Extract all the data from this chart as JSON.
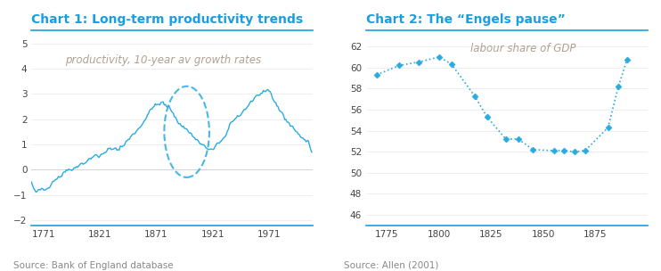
{
  "chart1_title": "Chart 1: Long-term productivity trends",
  "chart1_annotation": "productivity, 10-year av growth rates",
  "chart1_source": "Source: Bank of England database",
  "chart1_color": "#29ABE2",
  "chart1_xlim": [
    1760,
    2010
  ],
  "chart1_ylim": [
    -2.2,
    5.5
  ],
  "chart1_yticks": [
    -2,
    -1,
    0,
    1,
    2,
    3,
    4,
    5
  ],
  "chart1_xticks": [
    1771,
    1821,
    1871,
    1921,
    1971
  ],
  "chart2_title": "Chart 2: The “Engels pause”",
  "chart2_annotation": "labour share of GDP",
  "chart2_source": "Source: Allen (2001)",
  "chart2_color": "#29ABE2",
  "chart2_x": [
    1770,
    1781,
    1790,
    1800,
    1806,
    1817,
    1823,
    1832,
    1838,
    1845,
    1855,
    1860,
    1865,
    1870,
    1881,
    1886,
    1890
  ],
  "chart2_y": [
    59.3,
    60.2,
    60.5,
    61.0,
    60.3,
    57.3,
    55.3,
    53.2,
    53.2,
    52.2,
    52.1,
    52.1,
    52.0,
    52.1,
    54.3,
    58.2,
    60.7
  ],
  "chart2_xlim": [
    1765,
    1900
  ],
  "chart2_ylim": [
    45.0,
    63.5
  ],
  "chart2_yticks": [
    46,
    48,
    50,
    52,
    54,
    56,
    58,
    60,
    62
  ],
  "chart2_xticks": [
    1775,
    1800,
    1825,
    1850,
    1875
  ],
  "title_color": "#1A9EE0",
  "title_fontsize": 10,
  "annotation_color": "#B0A090",
  "axis_color": "#AAAAAA",
  "source_color": "#888888",
  "source_fontsize": 7.5,
  "annotation_fontsize": 8.5,
  "bg_color": "#FFFFFF",
  "line_color": "#29ABE2",
  "separator_color": "#1A9EE0"
}
